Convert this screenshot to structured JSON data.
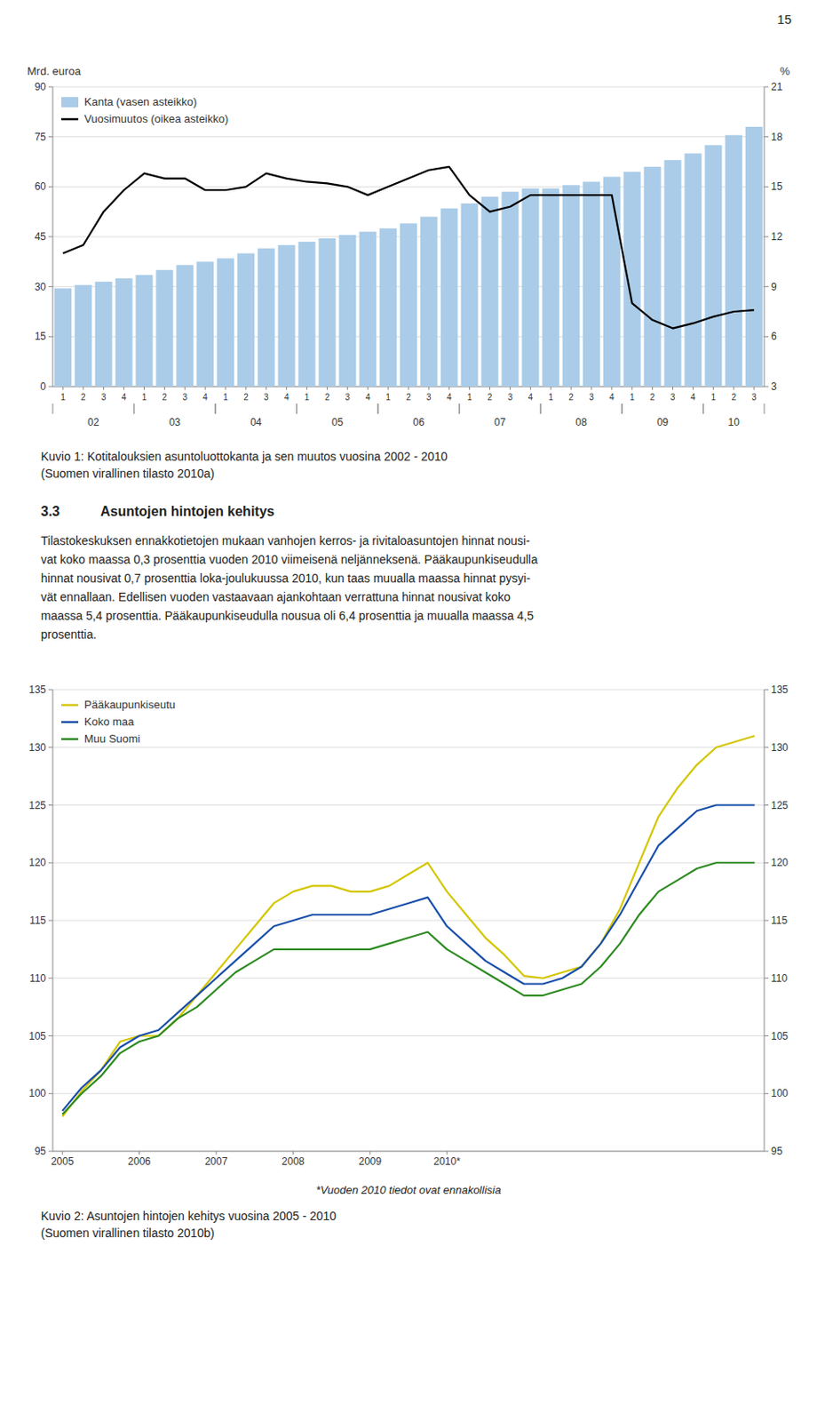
{
  "page_number": "15",
  "chart_data": [
    {
      "type": "bar",
      "ylabel": "Mrd. euroa",
      "y2label": "%",
      "categories": [
        "1",
        "2",
        "3",
        "4",
        "1",
        "2",
        "3",
        "4",
        "1",
        "2",
        "3",
        "4",
        "1",
        "2",
        "3",
        "4",
        "1",
        "2",
        "3",
        "4",
        "1",
        "2",
        "3",
        "4",
        "1",
        "2",
        "3",
        "4",
        "1",
        "2",
        "3",
        "4",
        "1",
        "2",
        "3"
      ],
      "category_groups": [
        {
          "label": "02",
          "count": 4
        },
        {
          "label": "03",
          "count": 4
        },
        {
          "label": "04",
          "count": 4
        },
        {
          "label": "05",
          "count": 4
        },
        {
          "label": "06",
          "count": 4
        },
        {
          "label": "07",
          "count": 4
        },
        {
          "label": "08",
          "count": 4
        },
        {
          "label": "09",
          "count": 4
        },
        {
          "label": "10",
          "count": 3
        }
      ],
      "series": [
        {
          "name": "Kanta (vasen asteikko)",
          "type": "bar",
          "color": "#aacce8",
          "values": [
            29.5,
            30.5,
            31.5,
            32.5,
            33.5,
            35.0,
            36.5,
            37.5,
            38.5,
            40.0,
            41.5,
            42.5,
            43.5,
            44.5,
            45.5,
            46.5,
            47.5,
            49.0,
            51.0,
            53.5,
            55.0,
            57.0,
            58.5,
            59.5,
            59.5,
            60.5,
            61.5,
            63.0,
            64.5,
            66.0,
            68.0,
            70.0,
            72.5,
            75.5,
            78.0
          ]
        },
        {
          "name": "Vuosimuutos (oikea asteikko)",
          "type": "line",
          "color": "#000000",
          "axis": "y2",
          "values": [
            11.0,
            11.5,
            13.5,
            14.8,
            15.8,
            15.5,
            15.5,
            14.8,
            14.8,
            15.0,
            15.8,
            15.5,
            15.3,
            15.2,
            15.0,
            14.5,
            15.0,
            15.5,
            16.0,
            16.2,
            14.5,
            13.5,
            13.8,
            14.5,
            14.5,
            14.5,
            14.5,
            14.5,
            8.0,
            7.0,
            6.5,
            6.8,
            7.2,
            7.5,
            7.6
          ]
        }
      ],
      "ylim": [
        0,
        90
      ],
      "yticks": [
        0,
        15,
        30,
        45,
        60,
        75,
        90
      ],
      "y2lim": [
        3,
        21
      ],
      "y2ticks": [
        3,
        6,
        9,
        12,
        15,
        18,
        21
      ],
      "grid": true,
      "legend": "upper left",
      "caption": "Kuvio 1: Kotitalouksien asuntoluottokanta ja sen muutos vuosina 2002 - 2010",
      "source": "(Suomen virallinen tilasto 2010a)"
    },
    {
      "type": "line",
      "categories": [
        "2005",
        null,
        null,
        null,
        "2006",
        null,
        null,
        null,
        "2007",
        null,
        null,
        null,
        "2008",
        null,
        null,
        null,
        "2009",
        null,
        null,
        null,
        "2010*",
        null,
        null,
        null,
        null,
        null,
        null,
        null,
        null,
        null,
        null,
        null,
        null,
        null,
        null,
        null,
        null
      ],
      "series": [
        {
          "name": "Pääkaupunkiseutu",
          "color": "#d4c600",
          "values": [
            98.0,
            100.2,
            102.0,
            104.5,
            105.0,
            105.0,
            106.5,
            108.5,
            110.5,
            112.5,
            114.5,
            116.5,
            117.5,
            118.0,
            118.0,
            117.5,
            117.5,
            118.0,
            119.0,
            120.0,
            117.5,
            115.5,
            113.5,
            112.0,
            110.2,
            110.0,
            110.5,
            111.0,
            113.0,
            116.0,
            120.0,
            124.0,
            126.5,
            128.5,
            130.0,
            130.5,
            131.0
          ]
        },
        {
          "name": "Koko maa",
          "color": "#1a4faa",
          "values": [
            98.5,
            100.5,
            102.0,
            104.0,
            105.0,
            105.5,
            107.0,
            108.5,
            110.0,
            111.5,
            113.0,
            114.5,
            115.0,
            115.5,
            115.5,
            115.5,
            115.5,
            116.0,
            116.5,
            117.0,
            114.5,
            113.0,
            111.5,
            110.5,
            109.5,
            109.5,
            110.0,
            111.0,
            113.0,
            115.5,
            118.5,
            121.5,
            123.0,
            124.5,
            125.0,
            125.0,
            125.0
          ]
        },
        {
          "name": "Muu Suomi",
          "color": "#2e8b22",
          "values": [
            98.2,
            100.0,
            101.5,
            103.5,
            104.5,
            105.0,
            106.5,
            107.5,
            109.0,
            110.5,
            111.5,
            112.5,
            112.5,
            112.5,
            112.5,
            112.5,
            112.5,
            113.0,
            113.5,
            114.0,
            112.5,
            111.5,
            110.5,
            109.5,
            108.5,
            108.5,
            109.0,
            109.5,
            111.0,
            113.0,
            115.5,
            117.5,
            118.5,
            119.5,
            120.0,
            120.0,
            120.0
          ]
        }
      ],
      "ylim": [
        95,
        135
      ],
      "yticks": [
        95,
        100,
        105,
        110,
        115,
        120,
        125,
        130,
        135
      ],
      "y2lim": [
        95,
        135
      ],
      "y2ticks": [
        95,
        100,
        105,
        110,
        115,
        120,
        125,
        130,
        135
      ],
      "grid": true,
      "legend": "upper left",
      "note": "*Vuoden 2010 tiedot ovat ennakollisia",
      "caption": "Kuvio 2: Asuntojen hintojen kehitys vuosina 2005 - 2010",
      "source": "(Suomen virallinen tilasto 2010b)"
    }
  ],
  "heading": {
    "number": "3.3",
    "text": "Asuntojen hintojen kehitys"
  },
  "paragraph": [
    "Tilastokeskuksen ennakkotietojen mukaan vanhojen kerros- ja rivitaloasuntojen hinnat nousi-",
    "vat koko maassa 0,3 prosenttia vuoden 2010 viimeisenä neljänneksenä. Pääkaupunkiseudulla",
    "hinnat nousivat 0,7 prosenttia loka-joulukuussa 2010, kun taas muualla maassa hinnat pysyi-",
    "vät ennallaan. Edellisen vuoden vastaavaan ajankohtaan verrattuna hinnat nousivat koko",
    "maassa 5,4 prosenttia. Pääkaupunkiseudulla nousua oli 6,4 prosenttia ja muualla maassa 4,5",
    "prosenttia."
  ]
}
